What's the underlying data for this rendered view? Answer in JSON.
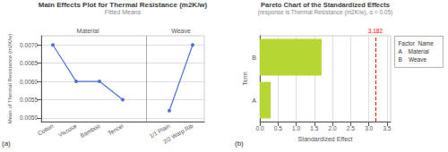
{
  "chart_data": [
    {
      "type": "line",
      "title": "Main Effects Plot for Thermal Resistance (m2K/w)",
      "subtitle": "Fitted Means",
      "ylabel": "Mean of Thermal Resistance (m2K/w)",
      "categories": [
        "Cotton",
        "Viscose",
        "Bamboo",
        "Tencel",
        null,
        "1/1 Plain",
        "2/2 Warp Rib"
      ],
      "values": [
        0.007,
        0.006,
        0.006,
        0.0055,
        null,
        0.0052,
        0.007
      ],
      "section_labels": [
        "Material",
        "Weave"
      ],
      "ylim": [
        0.0049,
        0.00725
      ],
      "yticks": [
        {
          "value": 0.005,
          "label": "0.0050"
        },
        0.0055,
        {
          "value": 0.006,
          "label": "0.0060"
        },
        0.0065,
        {
          "value": 0.007,
          "label": "0.0070"
        }
      ],
      "grid": true,
      "marker": "circle",
      "panel_label": "(a)"
    },
    {
      "type": "bar",
      "orientation": "horizontal",
      "title": "Pareto Chart of the Standardized Effects",
      "subtitle": "(response is Thermal Resistance (m2K/w), α = 0.05)",
      "xlabel": "Standardized Effect",
      "ylabel": "Term",
      "categories": [
        "A",
        "B"
      ],
      "values": [
        0.3,
        1.7
      ],
      "xlim": [
        0.0,
        3.6
      ],
      "xticks": [
        {
          "value": 0.0,
          "label": "0.0"
        },
        0.5,
        {
          "value": 1.0,
          "label": "1.0"
        },
        1.5,
        {
          "value": 2.0,
          "label": "2.0"
        },
        2.5,
        {
          "value": 3.0,
          "label": "3.0"
        },
        3.5
      ],
      "grid": true,
      "reference_line": {
        "value": 3.182,
        "label": "3.182",
        "color": "red"
      },
      "factor_table": [
        "Factor  Name",
        "A    Material",
        "B    Weave"
      ],
      "panel_label": "(b)"
    }
  ]
}
